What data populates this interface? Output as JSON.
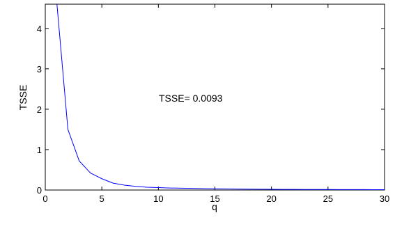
{
  "chart_data": {
    "type": "line",
    "xlabel": "q",
    "ylabel": "TSSE",
    "xlim": [
      0,
      30
    ],
    "ylim": [
      0,
      4.6
    ],
    "xticks": [
      0,
      5,
      10,
      15,
      20,
      25,
      30
    ],
    "yticks": [
      0,
      1,
      2,
      3,
      4
    ],
    "grid": false,
    "line_color": "#0000ff",
    "annotation": "TSSE= 0.0093",
    "series": [
      {
        "x": [
          1,
          2,
          3,
          4,
          5,
          6,
          7,
          8,
          9,
          10,
          11,
          12,
          13,
          14,
          15,
          16,
          17,
          18,
          19,
          20,
          21,
          22,
          23,
          24,
          25,
          26,
          27,
          28,
          29,
          30
        ],
        "values": [
          4.7,
          1.5,
          0.72,
          0.42,
          0.28,
          0.17,
          0.12,
          0.09,
          0.07,
          0.06,
          0.05,
          0.045,
          0.04,
          0.035,
          0.03,
          0.027,
          0.024,
          0.022,
          0.02,
          0.018,
          0.016,
          0.015,
          0.014,
          0.013,
          0.012,
          0.011,
          0.0105,
          0.01,
          0.0097,
          0.0093
        ]
      }
    ]
  }
}
